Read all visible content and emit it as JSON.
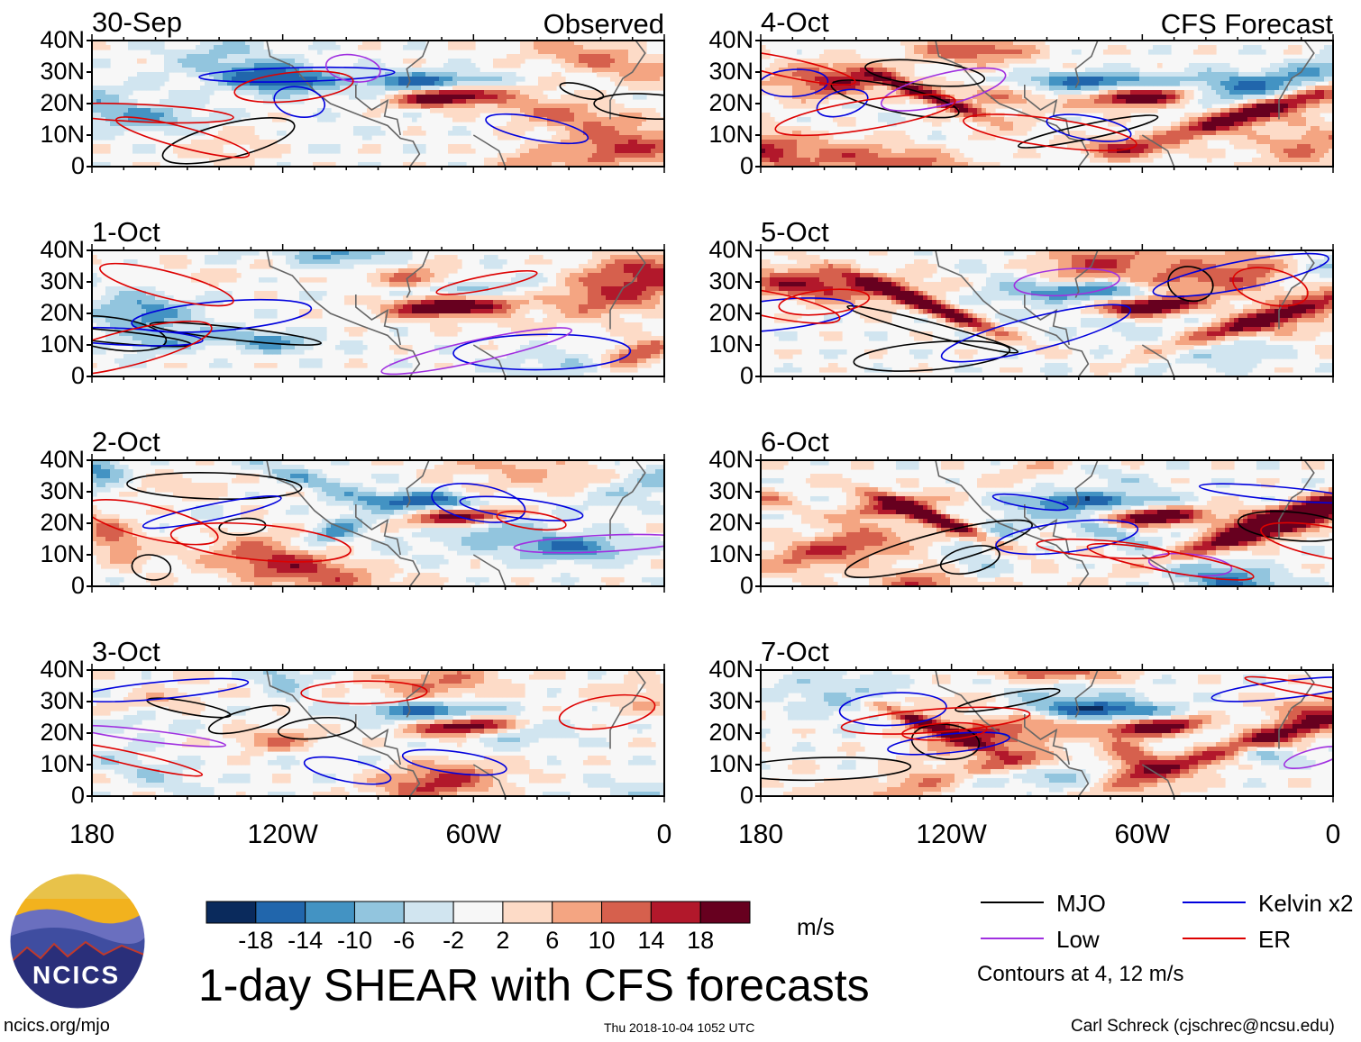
{
  "chart_data": {
    "type": "heatmap",
    "title": "1-day SHEAR with CFS forecasts",
    "units": "m/s",
    "columns": [
      {
        "label": "Observed",
        "panels": [
          "30-Sep",
          "1-Oct",
          "2-Oct",
          "3-Oct"
        ]
      },
      {
        "label": "CFS Forecast",
        "panels": [
          "4-Oct",
          "5-Oct",
          "6-Oct",
          "7-Oct"
        ]
      }
    ],
    "y_ticks": [
      "40N",
      "30N",
      "20N",
      "10N",
      "0"
    ],
    "y_range": [
      0,
      40
    ],
    "x_ticks": [
      "180",
      "120W",
      "60W",
      "0"
    ],
    "x_range": [
      -180,
      0
    ],
    "colorbar": {
      "ticks": [
        "-18",
        "-14",
        "-10",
        "-6",
        "-2",
        "2",
        "6",
        "10",
        "14",
        "18"
      ],
      "colors": [
        "#0a2a5c",
        "#2166ac",
        "#4393c3",
        "#92c5de",
        "#d1e5f0",
        "#f7f7f7",
        "#fddbc7",
        "#f4a582",
        "#d6604d",
        "#b2182b",
        "#67001f"
      ]
    },
    "contour_legend": [
      {
        "name": "MJO",
        "color": "#000000"
      },
      {
        "name": "Kelvin x2",
        "color": "#0000dd"
      },
      {
        "name": "Low",
        "color": "#a030e0"
      },
      {
        "name": "ER",
        "color": "#dd0000"
      }
    ],
    "contour_note": "Contours at 4, 12 m/s"
  },
  "footer": {
    "website": "ncics.org/mjo",
    "timestamp": "Thu 2018-10-04 1052 UTC",
    "author": "Carl Schreck (cjschrec@ncsu.edu)",
    "logo_text": "NCICS"
  }
}
